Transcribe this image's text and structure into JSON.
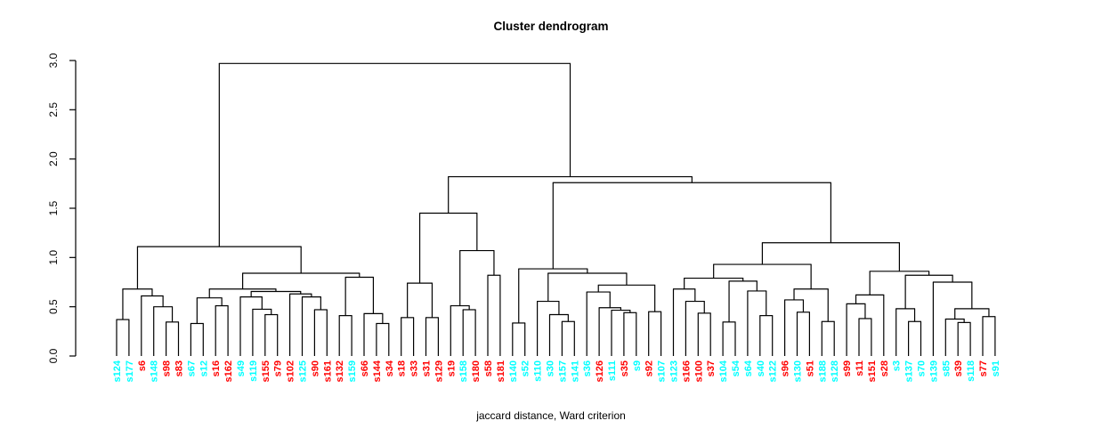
{
  "title": "Cluster dendrogram",
  "caption": "jaccard distance, Ward criterion",
  "chart_data": {
    "type": "dendrogram",
    "title": "Cluster dendrogram",
    "xlabel": "jaccard distance, Ward criterion",
    "ylabel": "",
    "ylim": [
      0,
      3
    ],
    "yticks": [
      "0.0",
      "0.5",
      "1.0",
      "1.5",
      "2.0",
      "2.5",
      "3.0"
    ],
    "grid": false,
    "line_color": "#000000",
    "axis_color": "#000000",
    "label_colors": {
      "cyan": "#00FFFF",
      "red": "#FF0000"
    },
    "leaves": [
      {
        "label": "s124",
        "color": "cyan"
      },
      {
        "label": "s177",
        "color": "cyan"
      },
      {
        "label": "s6",
        "color": "red"
      },
      {
        "label": "s148",
        "color": "cyan"
      },
      {
        "label": "s98",
        "color": "red"
      },
      {
        "label": "s83",
        "color": "red"
      },
      {
        "label": "s67",
        "color": "cyan"
      },
      {
        "label": "s12",
        "color": "cyan"
      },
      {
        "label": "s16",
        "color": "red"
      },
      {
        "label": "s162",
        "color": "red"
      },
      {
        "label": "s49",
        "color": "cyan"
      },
      {
        "label": "s119",
        "color": "cyan"
      },
      {
        "label": "s155",
        "color": "red"
      },
      {
        "label": "s79",
        "color": "red"
      },
      {
        "label": "s102",
        "color": "red"
      },
      {
        "label": "s125",
        "color": "cyan"
      },
      {
        "label": "s90",
        "color": "red"
      },
      {
        "label": "s161",
        "color": "red"
      },
      {
        "label": "s132",
        "color": "red"
      },
      {
        "label": "s159",
        "color": "cyan"
      },
      {
        "label": "s66",
        "color": "red"
      },
      {
        "label": "s144",
        "color": "red"
      },
      {
        "label": "s34",
        "color": "red"
      },
      {
        "label": "s18",
        "color": "red"
      },
      {
        "label": "s33",
        "color": "red"
      },
      {
        "label": "s31",
        "color": "red"
      },
      {
        "label": "s129",
        "color": "red"
      },
      {
        "label": "s19",
        "color": "red"
      },
      {
        "label": "s158",
        "color": "cyan"
      },
      {
        "label": "s180",
        "color": "red"
      },
      {
        "label": "s58",
        "color": "red"
      },
      {
        "label": "s181",
        "color": "red"
      },
      {
        "label": "s140",
        "color": "cyan"
      },
      {
        "label": "s52",
        "color": "cyan"
      },
      {
        "label": "s110",
        "color": "cyan"
      },
      {
        "label": "s30",
        "color": "cyan"
      },
      {
        "label": "s157",
        "color": "cyan"
      },
      {
        "label": "s141",
        "color": "cyan"
      },
      {
        "label": "s36",
        "color": "cyan"
      },
      {
        "label": "s126",
        "color": "red"
      },
      {
        "label": "s111",
        "color": "cyan"
      },
      {
        "label": "s35",
        "color": "red"
      },
      {
        "label": "s9",
        "color": "cyan"
      },
      {
        "label": "s92",
        "color": "red"
      },
      {
        "label": "s107",
        "color": "cyan"
      },
      {
        "label": "s123",
        "color": "cyan"
      },
      {
        "label": "s166",
        "color": "red"
      },
      {
        "label": "s100",
        "color": "red"
      },
      {
        "label": "s37",
        "color": "red"
      },
      {
        "label": "s104",
        "color": "cyan"
      },
      {
        "label": "s54",
        "color": "cyan"
      },
      {
        "label": "s64",
        "color": "cyan"
      },
      {
        "label": "s40",
        "color": "cyan"
      },
      {
        "label": "s122",
        "color": "cyan"
      },
      {
        "label": "s96",
        "color": "red"
      },
      {
        "label": "s130",
        "color": "cyan"
      },
      {
        "label": "s51",
        "color": "red"
      },
      {
        "label": "s188",
        "color": "cyan"
      },
      {
        "label": "s128",
        "color": "cyan"
      },
      {
        "label": "s99",
        "color": "red"
      },
      {
        "label": "s11",
        "color": "red"
      },
      {
        "label": "s151",
        "color": "red"
      },
      {
        "label": "s28",
        "color": "red"
      },
      {
        "label": "s3",
        "color": "cyan"
      },
      {
        "label": "s137",
        "color": "cyan"
      },
      {
        "label": "s70",
        "color": "cyan"
      },
      {
        "label": "s139",
        "color": "cyan"
      },
      {
        "label": "s85",
        "color": "cyan"
      },
      {
        "label": "s39",
        "color": "red"
      },
      {
        "label": "s118",
        "color": "cyan"
      },
      {
        "label": "s77",
        "color": "red"
      },
      {
        "label": "s91",
        "color": "cyan"
      }
    ],
    "tree": {
      "h": 2.97,
      "c": [
        {
          "h": 1.11,
          "c": [
            {
              "h": 0.68,
              "c": [
                {
                  "h": 0.37,
                  "c": [
                    0,
                    1
                  ]
                },
                {
                  "h": 0.61,
                  "c": [
                    2,
                    {
                      "h": 0.5,
                      "c": [
                        3,
                        {
                          "h": 0.345,
                          "c": [
                            4,
                            5
                          ]
                        }
                      ]
                    }
                  ]
                }
              ]
            },
            {
              "h": 0.84,
              "c": [
                {
                  "h": 0.68,
                  "c": [
                    {
                      "h": 0.59,
                      "c": [
                        {
                          "h": 0.33,
                          "c": [
                            6,
                            7
                          ]
                        },
                        {
                          "h": 0.51,
                          "c": [
                            8,
                            9
                          ]
                        }
                      ]
                    },
                    {
                      "h": 0.655,
                      "c": [
                        {
                          "h": 0.6,
                          "c": [
                            10,
                            {
                              "h": 0.475,
                              "c": [
                                11,
                                {
                                  "h": 0.42,
                                  "c": [
                                    12,
                                    13
                                  ]
                                }
                              ]
                            }
                          ]
                        },
                        {
                          "h": 0.63,
                          "c": [
                            14,
                            {
                              "h": 0.6,
                              "c": [
                                15,
                                {
                                  "h": 0.47,
                                  "c": [
                                    16,
                                    17
                                  ]
                                }
                              ]
                            }
                          ]
                        }
                      ]
                    }
                  ]
                },
                {
                  "h": 0.8,
                  "c": [
                    {
                      "h": 0.41,
                      "c": [
                        18,
                        19
                      ]
                    },
                    {
                      "h": 0.43,
                      "c": [
                        20,
                        {
                          "h": 0.33,
                          "c": [
                            21,
                            22
                          ]
                        }
                      ]
                    }
                  ]
                }
              ]
            }
          ]
        },
        {
          "h": 1.82,
          "c": [
            {
              "h": 1.45,
              "c": [
                {
                  "h": 0.74,
                  "c": [
                    {
                      "h": 0.39,
                      "c": [
                        23,
                        24
                      ]
                    },
                    {
                      "h": 0.39,
                      "c": [
                        25,
                        26
                      ]
                    }
                  ]
                },
                {
                  "h": 1.07,
                  "c": [
                    {
                      "h": 0.51,
                      "c": [
                        27,
                        {
                          "h": 0.47,
                          "c": [
                            28,
                            29
                          ]
                        }
                      ]
                    },
                    {
                      "h": 0.82,
                      "c": [
                        30,
                        31
                      ]
                    }
                  ]
                }
              ]
            },
            {
              "h": 1.76,
              "c": [
                {
                  "h": 0.885,
                  "c": [
                    {
                      "h": 0.335,
                      "c": [
                        32,
                        33
                      ]
                    },
                    {
                      "h": 0.84,
                      "c": [
                        {
                          "h": 0.555,
                          "c": [
                            34,
                            {
                              "h": 0.42,
                              "c": [
                                35,
                                {
                                  "h": 0.35,
                                  "c": [
                                    36,
                                    37
                                  ]
                                }
                              ]
                            }
                          ]
                        },
                        {
                          "h": 0.72,
                          "c": [
                            {
                              "h": 0.65,
                              "c": [
                                38,
                                {
                                  "h": 0.49,
                                  "c": [
                                    39,
                                    {
                                      "h": 0.465,
                                      "c": [
                                        40,
                                        {
                                          "h": 0.44,
                                          "c": [
                                            41,
                                            42
                                          ]
                                        }
                                      ]
                                    }
                                  ]
                                }
                              ]
                            },
                            {
                              "h": 0.45,
                              "c": [
                                43,
                                44
                              ]
                            }
                          ]
                        }
                      ]
                    }
                  ]
                },
                {
                  "h": 1.15,
                  "c": [
                    {
                      "h": 0.93,
                      "c": [
                        {
                          "h": 0.79,
                          "c": [
                            {
                              "h": 0.68,
                              "c": [
                                45,
                                {
                                  "h": 0.555,
                                  "c": [
                                    46,
                                    {
                                      "h": 0.435,
                                      "c": [
                                        47,
                                        48
                                      ]
                                    }
                                  ]
                                }
                              ]
                            },
                            {
                              "h": 0.76,
                              "c": [
                                {
                                  "h": 0.345,
                                  "c": [
                                    49,
                                    50
                                  ]
                                },
                                {
                                  "h": 0.66,
                                  "c": [
                                    51,
                                    {
                                      "h": 0.41,
                                      "c": [
                                        52,
                                        53
                                      ]
                                    }
                                  ]
                                }
                              ]
                            }
                          ]
                        },
                        {
                          "h": 0.68,
                          "c": [
                            {
                              "h": 0.57,
                              "c": [
                                54,
                                {
                                  "h": 0.445,
                                  "c": [
                                    55,
                                    56
                                  ]
                                }
                              ]
                            },
                            {
                              "h": 0.35,
                              "c": [
                                57,
                                58
                              ]
                            }
                          ]
                        }
                      ]
                    },
                    {
                      "h": 0.86,
                      "c": [
                        {
                          "h": 0.62,
                          "c": [
                            {
                              "h": 0.53,
                              "c": [
                                59,
                                {
                                  "h": 0.38,
                                  "c": [
                                    60,
                                    61
                                  ]
                                }
                              ]
                            },
                            62
                          ]
                        },
                        {
                          "h": 0.82,
                          "c": [
                            {
                              "h": 0.48,
                              "c": [
                                63,
                                {
                                  "h": 0.35,
                                  "c": [
                                    64,
                                    65
                                  ]
                                }
                              ]
                            },
                            {
                              "h": 0.75,
                              "c": [
                                66,
                                {
                                  "h": 0.48,
                                  "c": [
                                    {
                                      "h": 0.375,
                                      "c": [
                                        67,
                                        {
                                          "h": 0.34,
                                          "c": [
                                            68,
                                            69
                                          ]
                                        }
                                      ]
                                    },
                                    {
                                      "h": 0.4,
                                      "c": [
                                        70,
                                        71
                                      ]
                                    }
                                  ]
                                }
                              ]
                            }
                          ]
                        }
                      ]
                    }
                  ]
                }
              ]
            }
          ]
        }
      ]
    }
  }
}
